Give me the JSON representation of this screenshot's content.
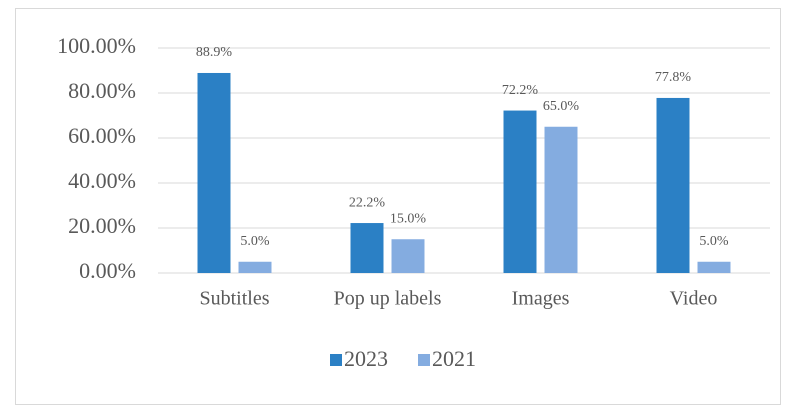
{
  "chart_data": {
    "type": "bar",
    "categories": [
      "Subtitles",
      "Pop up labels",
      "Images",
      "Video"
    ],
    "series": [
      {
        "name": "2023",
        "color": "#2b80c5",
        "values": [
          88.9,
          22.2,
          72.2,
          77.8
        ],
        "value_labels": [
          "88.9%",
          "22.2%",
          "72.2%",
          "77.8%"
        ]
      },
      {
        "name": "2021",
        "color": "#84ace0",
        "values": [
          5.0,
          15.0,
          65.0,
          5.0
        ],
        "value_labels": [
          "5.0%",
          "15.0%",
          "65.0%",
          "5.0%"
        ]
      }
    ],
    "ylim": [
      0,
      100
    ],
    "yticks": [
      {
        "value": 0,
        "label": "0.00%"
      },
      {
        "value": 20,
        "label": "20.00%"
      },
      {
        "value": 40,
        "label": "40.00%"
      },
      {
        "value": 60,
        "label": "60.00%"
      },
      {
        "value": 80,
        "label": "80.00%"
      },
      {
        "value": 100,
        "label": "100.00%"
      }
    ],
    "grid": true,
    "legend": "bottom"
  }
}
